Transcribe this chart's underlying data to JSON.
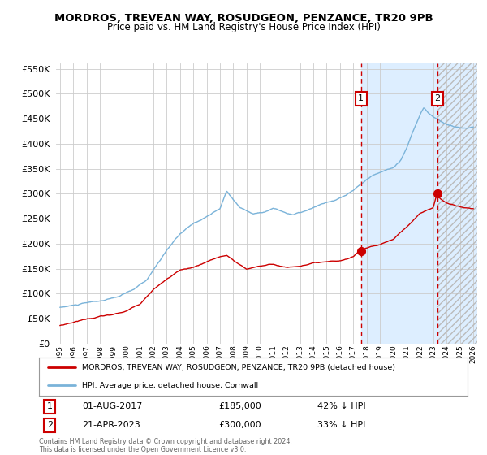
{
  "title": "MORDROS, TREVEAN WAY, ROSUDGEON, PENZANCE, TR20 9PB",
  "subtitle": "Price paid vs. HM Land Registry's House Price Index (HPI)",
  "title_fontsize": 10,
  "subtitle_fontsize": 8.5,
  "background_color": "#ffffff",
  "plot_bg_color": "#ffffff",
  "grid_color": "#cccccc",
  "hpi_color": "#7ab3d9",
  "price_color": "#cc0000",
  "shade_color": "#ddeeff",
  "hatch_color": "#cccccc",
  "sale1_date_x": 2017.58,
  "sale1_price": 185000,
  "sale2_date_x": 2023.3,
  "sale2_price": 300000,
  "xmin": 1994.7,
  "xmax": 2026.3,
  "ymin": 0,
  "ymax": 560000,
  "legend_line1": "MORDROS, TREVEAN WAY, ROSUDGEON, PENZANCE, TR20 9PB (detached house)",
  "legend_line2": "HPI: Average price, detached house, Cornwall",
  "note1_label": "1",
  "note1_date": "01-AUG-2017",
  "note1_price": "£185,000",
  "note1_hpi": "42% ↓ HPI",
  "note2_label": "2",
  "note2_date": "21-APR-2023",
  "note2_price": "£300,000",
  "note2_hpi": "33% ↓ HPI",
  "footer": "Contains HM Land Registry data © Crown copyright and database right 2024.\nThis data is licensed under the Open Government Licence v3.0."
}
